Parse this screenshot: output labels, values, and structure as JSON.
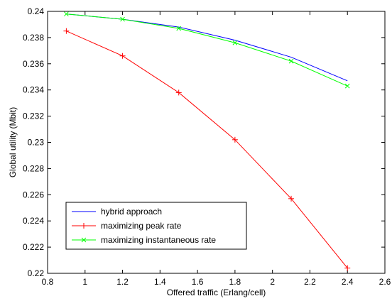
{
  "chart_data": {
    "type": "line",
    "title": "",
    "xlabel": "Offered traffic (Erlang/cell)",
    "ylabel": "Global utility (Mbit)",
    "xlim": [
      0.8,
      2.6
    ],
    "ylim": [
      0.22,
      0.24
    ],
    "xticks": [
      0.8,
      1,
      1.2,
      1.4,
      1.6,
      1.8,
      2,
      2.2,
      2.4,
      2.6
    ],
    "xtick_labels": [
      "0.8",
      "1",
      "1.2",
      "1.4",
      "1.6",
      "1.8",
      "2",
      "2.2",
      "2.4",
      "2.6"
    ],
    "yticks": [
      0.22,
      0.222,
      0.224,
      0.226,
      0.228,
      0.23,
      0.232,
      0.234,
      0.236,
      0.238,
      0.24
    ],
    "ytick_labels": [
      "0.22",
      "0.222",
      "0.224",
      "0.226",
      "0.228",
      "0.23",
      "0.232",
      "0.234",
      "0.236",
      "0.238",
      "0.24"
    ],
    "grid": false,
    "legend_position": "bottom-left",
    "x": [
      0.9,
      1.2,
      1.5,
      1.8,
      2.1,
      2.4
    ],
    "series": [
      {
        "name": "hybrid approach",
        "color": "#0000ff",
        "marker": "none",
        "values": [
          0.2398,
          0.2394,
          0.2388,
          0.2378,
          0.2365,
          0.2347
        ]
      },
      {
        "name": "maximizing peak rate",
        "color": "#ff0000",
        "marker": "plus",
        "values": [
          0.2385,
          0.2366,
          0.2338,
          0.2302,
          0.2257,
          0.2204
        ]
      },
      {
        "name": "maximizing instantaneous rate",
        "color": "#00ff00",
        "marker": "x",
        "values": [
          0.2398,
          0.2394,
          0.2387,
          0.2376,
          0.2362,
          0.2343
        ]
      }
    ]
  }
}
